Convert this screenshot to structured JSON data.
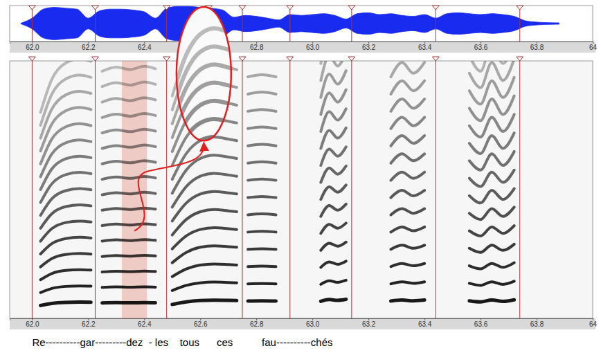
{
  "chart_data": [
    {
      "type": "area",
      "color": "#1a2bf0",
      "x": [
        61.96,
        62.0,
        62.04,
        62.08,
        62.12,
        62.16,
        62.2,
        62.24,
        62.28,
        62.32,
        62.36,
        62.4,
        62.44,
        62.48,
        62.52,
        62.56,
        62.6,
        62.64,
        62.68,
        62.72,
        62.76,
        62.8,
        62.84,
        62.88,
        62.92,
        62.96,
        63.0,
        63.04,
        63.08,
        63.12,
        63.16,
        63.2,
        63.24,
        63.28,
        63.32,
        63.36,
        63.4,
        63.44,
        63.48,
        63.52,
        63.56,
        63.6,
        63.64,
        63.68,
        63.72,
        63.76,
        63.8,
        63.84,
        63.88
      ],
      "values": [
        0.02,
        0.3,
        0.8,
        0.9,
        0.85,
        0.8,
        0.3,
        0.7,
        0.8,
        0.8,
        0.75,
        0.65,
        0.3,
        0.85,
        0.95,
        0.95,
        0.9,
        0.85,
        0.75,
        0.35,
        0.45,
        0.4,
        0.3,
        0.2,
        0.5,
        0.45,
        0.5,
        0.55,
        0.45,
        0.25,
        0.55,
        0.6,
        0.5,
        0.55,
        0.45,
        0.4,
        0.5,
        0.3,
        0.55,
        0.6,
        0.55,
        0.5,
        0.55,
        0.5,
        0.4,
        0.15,
        0.08,
        0.05,
        0.04
      ],
      "xlim": [
        61.92,
        64.0
      ],
      "xticks": [
        {
          "value": 62.0,
          "label": "62.0"
        },
        {
          "value": 62.2,
          "label": "62.2"
        },
        {
          "value": 62.4,
          "label": "62.4"
        },
        {
          "value": 62.6,
          "label": "62.6"
        },
        {
          "value": 62.8,
          "label": "62.8"
        },
        {
          "value": 63.0,
          "label": "63.0"
        },
        {
          "value": 63.2,
          "label": "63.2"
        },
        {
          "value": 63.4,
          "label": "63.4"
        },
        {
          "value": 63.6,
          "label": "63.6"
        },
        {
          "value": 63.8,
          "label": "63.8"
        },
        64
      ],
      "ylim": [
        -1,
        1
      ],
      "tick_labels": "x",
      "boundaries": [
        62.0,
        62.225,
        62.48,
        62.63,
        62.75,
        62.92,
        63.14,
        63.44,
        63.74
      ]
    },
    {
      "type": "spectrogram",
      "color": "#000000",
      "x": [
        62.03,
        62.07,
        62.12,
        62.17,
        62.21,
        62.225,
        62.25,
        62.3,
        62.35,
        62.4,
        62.44,
        62.47,
        62.5,
        62.55,
        62.6,
        62.65,
        62.7,
        62.73,
        62.75,
        62.77,
        62.82,
        62.87,
        62.95,
        63.03,
        63.06,
        63.09,
        63.12,
        63.2,
        63.28,
        63.32,
        63.36,
        63.4,
        63.48,
        63.56,
        63.6,
        63.64,
        63.68,
        63.72
      ],
      "values": [
        250,
        290,
        310,
        315,
        312,
        null,
        300,
        305,
        302,
        306,
        303,
        null,
        270,
        320,
        345,
        352,
        348,
        345,
        null,
        335,
        338,
        335,
        null,
        330,
        365,
        350,
        370,
        null,
        335,
        355,
        340,
        355,
        null,
        340,
        320,
        355,
        330,
        360
      ],
      "harmonics": 16,
      "xlim": [
        61.92,
        64.0
      ],
      "xticks": [
        {
          "value": 62.0,
          "label": "62.0"
        },
        {
          "value": 62.2,
          "label": "62.2"
        },
        {
          "value": 62.4,
          "label": "62.4"
        },
        {
          "value": 62.6,
          "label": "62.6"
        },
        {
          "value": 62.8,
          "label": "62.8"
        },
        {
          "value": 63.0,
          "label": "63.0"
        },
        {
          "value": 63.2,
          "label": "63.2"
        },
        {
          "value": 63.4,
          "label": "63.4"
        },
        {
          "value": 63.6,
          "label": "63.6"
        },
        {
          "value": 63.8,
          "label": "63.8"
        },
        64
      ],
      "ylim": [
        0,
        5000
      ],
      "tick_labels": "x",
      "boundaries": [
        62.0,
        62.225,
        62.48,
        62.75,
        62.92,
        63.14,
        63.44,
        63.74
      ],
      "highlight": [
        62.32,
        62.41
      ],
      "ellipse": {
        "x": [
          62.515,
          62.71
        ],
        "y": [
          3450,
          6050
        ]
      },
      "annotation": "Re----------gar---------dez  - les    tous      ces          fau----------chés"
    }
  ]
}
